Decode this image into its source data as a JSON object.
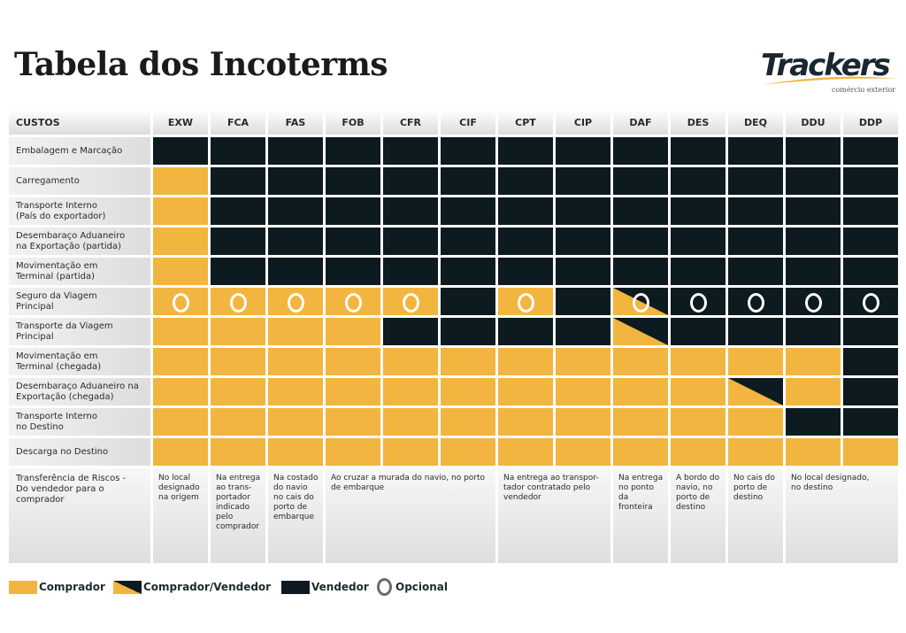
{
  "title": "Tabela dos Incoterms",
  "logo": {
    "wordmark": "Trackers",
    "tagline": "comércio exterior",
    "colors": {
      "text": "#1b2730",
      "swoosh": "#f2b540"
    }
  },
  "colors": {
    "comprador": "#f2b540",
    "vendedor": "#0d1b20",
    "header_bg": "#e6e6e6"
  },
  "table": {
    "corner_label": "CUSTOS",
    "columns": [
      "EXW",
      "FCA",
      "FAS",
      "FOB",
      "CFR",
      "CIF",
      "CPT",
      "CIP",
      "DAF",
      "DES",
      "DEQ",
      "DDU",
      "DDP"
    ],
    "rows": [
      {
        "label": "Embalagem e Marcação",
        "cells": [
          "V",
          "V",
          "V",
          "V",
          "V",
          "V",
          "V",
          "V",
          "V",
          "V",
          "V",
          "V",
          "V"
        ]
      },
      {
        "label": "Carregamento",
        "cells": [
          "C",
          "V",
          "V",
          "V",
          "V",
          "V",
          "V",
          "V",
          "V",
          "V",
          "V",
          "V",
          "V"
        ]
      },
      {
        "label": "Transporte Interno\n(País do exportador)",
        "cells": [
          "C",
          "V",
          "V",
          "V",
          "V",
          "V",
          "V",
          "V",
          "V",
          "V",
          "V",
          "V",
          "V"
        ]
      },
      {
        "label": "Desembaraço Aduaneiro\nna Exportação (partida)",
        "cells": [
          "C",
          "V",
          "V",
          "V",
          "V",
          "V",
          "V",
          "V",
          "V",
          "V",
          "V",
          "V",
          "V"
        ]
      },
      {
        "label": "Movimentação em\nTerminal (partida)",
        "cells": [
          "C",
          "V",
          "V",
          "V",
          "V",
          "V",
          "V",
          "V",
          "V",
          "V",
          "V",
          "V",
          "V"
        ]
      },
      {
        "label": "Seguro da Viagem\nPrincipal",
        "cells": [
          "CO",
          "CO",
          "CO",
          "CO",
          "CO",
          "V",
          "CO",
          "V",
          "CVO",
          "VO",
          "VO",
          "VO",
          "VO"
        ]
      },
      {
        "label": "Transporte da Viagem\nPrincipal",
        "cells": [
          "C",
          "C",
          "C",
          "C",
          "V",
          "V",
          "V",
          "V",
          "CV",
          "V",
          "V",
          "V",
          "V"
        ]
      },
      {
        "label": "Movimentação em\nTerminal (chegada)",
        "cells": [
          "C",
          "C",
          "C",
          "C",
          "C",
          "C",
          "C",
          "C",
          "C",
          "C",
          "C",
          "C",
          "V"
        ]
      },
      {
        "label": "Desembaraço Aduaneiro na\nExportação (chegada)",
        "cells": [
          "C",
          "C",
          "C",
          "C",
          "C",
          "C",
          "C",
          "C",
          "C",
          "C",
          "CV",
          "C",
          "V"
        ]
      },
      {
        "label": "Transporte Interno\nno Destino",
        "cells": [
          "C",
          "C",
          "C",
          "C",
          "C",
          "C",
          "C",
          "C",
          "C",
          "C",
          "C",
          "V",
          "V"
        ]
      },
      {
        "label": "Descarga no Destino",
        "cells": [
          "C",
          "C",
          "C",
          "C",
          "C",
          "C",
          "C",
          "C",
          "C",
          "C",
          "C",
          "C",
          "C"
        ]
      }
    ],
    "risk_row": {
      "label": "Transferência de Riscos -\nDo vendedor para o\ncomprador",
      "cells": [
        {
          "span": 1,
          "text": "No local\ndesignado\nna origem"
        },
        {
          "span": 1,
          "text": "Na entrega\nao trans-\nportador\nindicado\npelo\ncomprador"
        },
        {
          "span": 1,
          "text": "Na costado\ndo navio\nno cais do\nporto de\nembarque"
        },
        {
          "span": 3,
          "text": "Ao cruzar a murada do navio, no porto\nde embarque"
        },
        {
          "span": 2,
          "text": "Na entrega ao transpor-\ntador contratado pelo\nvendedor"
        },
        {
          "span": 1,
          "text": "Na entrega\nno ponto da\nfronteira"
        },
        {
          "span": 1,
          "text": "A bordo do\nnavio, no\nporto de\ndestino"
        },
        {
          "span": 1,
          "text": "No cais do\nporto de\ndestino"
        },
        {
          "span": 2,
          "text": "No local designado,\nno destino"
        }
      ]
    }
  },
  "legend": {
    "comprador": "Comprador",
    "comprador_vendedor": "Comprador/Vendedor",
    "vendedor": "Vendedor",
    "opcional": "Opcional"
  }
}
